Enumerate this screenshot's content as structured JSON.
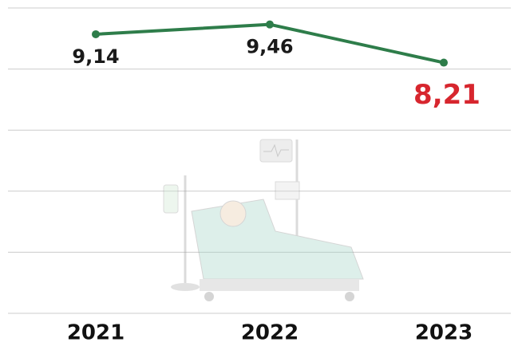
{
  "chart_data": {
    "type": "line",
    "categories": [
      "2021",
      "2022",
      "2023"
    ],
    "series": [
      {
        "color": "#2e7d4a",
        "values": [
          9.14,
          9.46,
          8.21
        ]
      }
    ],
    "value_labels": [
      "9,14",
      "9,46",
      "8,21"
    ],
    "value_label_colors": [
      "#1a1a1a",
      "#1a1a1a",
      "#d7262e"
    ],
    "ylim": [
      0,
      10
    ],
    "yticks": [
      0,
      2,
      4,
      6,
      8,
      10
    ],
    "grid": true
  }
}
